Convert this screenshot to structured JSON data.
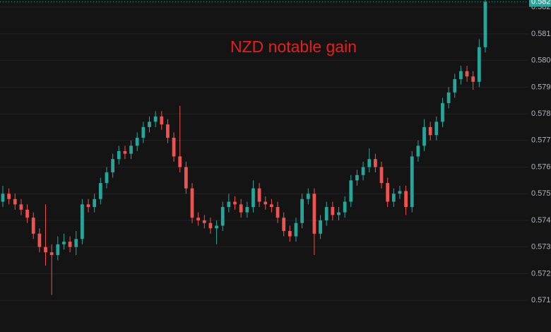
{
  "chart_data": {
    "type": "candlestick",
    "annotation": "NZD notable gain",
    "up_color": "#26a69a",
    "down_color": "#ef5350",
    "grid": true,
    "ylim": [
      0.56981,
      0.58227
    ],
    "yticks": [
      {
        "value": 0.571,
        "label": "0.57100"
      },
      {
        "value": 0.572,
        "label": "0.57200"
      },
      {
        "value": 0.573,
        "label": "0.57300"
      },
      {
        "value": 0.574,
        "label": "0.57400"
      },
      {
        "value": 0.575,
        "label": "0.57500"
      },
      {
        "value": 0.576,
        "label": "0.57600"
      },
      {
        "value": 0.577,
        "label": "0.57700"
      },
      {
        "value": 0.578,
        "label": "0.57800"
      },
      {
        "value": 0.579,
        "label": "0.57900"
      },
      {
        "value": 0.58,
        "label": "0.58000"
      },
      {
        "value": 0.581,
        "label": "0.58100"
      },
      {
        "value": 0.582,
        "label": "0.58200"
      }
    ],
    "last_price": {
      "value": 0.5822,
      "label": "0.58220"
    },
    "open": [
      0.5747,
      0.575,
      0.5748,
      0.5746,
      0.5744,
      0.5741,
      0.5735,
      0.573,
      0.5728,
      0.5727,
      0.5731,
      0.5732,
      0.573,
      0.5733,
      0.5746,
      0.5745,
      0.5748,
      0.5754,
      0.5758,
      0.5763,
      0.5766,
      0.5765,
      0.5768,
      0.5771,
      0.5775,
      0.5777,
      0.5779,
      0.5776,
      0.5771,
      0.5764,
      0.576,
      0.5752,
      0.5741,
      0.574,
      0.5739,
      0.5737,
      0.5738,
      0.5745,
      0.5747,
      0.5746,
      0.5743,
      0.5745,
      0.5752,
      0.5747,
      0.5746,
      0.5745,
      0.5741,
      0.5736,
      0.5734,
      0.5739,
      0.5748,
      0.575,
      0.5735,
      0.574,
      0.5745,
      0.5742,
      0.5743,
      0.5747,
      0.5755,
      0.5757,
      0.576,
      0.5763,
      0.576,
      0.5754,
      0.5747,
      0.575,
      0.5751,
      0.5745,
      0.5764,
      0.5768,
      0.5775,
      0.5772,
      0.5777,
      0.5784,
      0.5788,
      0.5793,
      0.5796,
      0.5794,
      0.5792,
      0.5805
    ],
    "high": [
      0.5753,
      0.5752,
      0.575,
      0.5748,
      0.5746,
      0.5743,
      0.5737,
      0.5746,
      0.5731,
      0.5734,
      0.5735,
      0.5734,
      0.5736,
      0.5748,
      0.5748,
      0.575,
      0.5756,
      0.576,
      0.5765,
      0.5768,
      0.5768,
      0.577,
      0.5773,
      0.5777,
      0.5779,
      0.5781,
      0.5781,
      0.5778,
      0.5773,
      0.5783,
      0.5762,
      0.5754,
      0.5743,
      0.5742,
      0.5741,
      0.574,
      0.5747,
      0.575,
      0.5749,
      0.5748,
      0.5747,
      0.5755,
      0.5754,
      0.5749,
      0.5748,
      0.5747,
      0.5743,
      0.5738,
      0.5741,
      0.575,
      0.5752,
      0.5752,
      0.5742,
      0.5747,
      0.5747,
      0.5745,
      0.5749,
      0.5757,
      0.5759,
      0.5762,
      0.5767,
      0.5765,
      0.5762,
      0.5756,
      0.5752,
      0.5753,
      0.5753,
      0.5766,
      0.577,
      0.5778,
      0.5777,
      0.5779,
      0.5786,
      0.579,
      0.5795,
      0.5798,
      0.5798,
      0.5796,
      0.5808,
      0.5823
    ],
    "low": [
      0.5745,
      0.5746,
      0.5744,
      0.5742,
      0.5739,
      0.5733,
      0.5728,
      0.5723,
      0.5712,
      0.5725,
      0.5729,
      0.5728,
      0.5727,
      0.5731,
      0.5743,
      0.5743,
      0.5746,
      0.5752,
      0.5756,
      0.5761,
      0.5763,
      0.5763,
      0.5766,
      0.5769,
      0.5773,
      0.5775,
      0.5774,
      0.5769,
      0.5762,
      0.5758,
      0.575,
      0.5739,
      0.5738,
      0.5737,
      0.5735,
      0.5731,
      0.5736,
      0.5743,
      0.5744,
      0.5741,
      0.5741,
      0.5743,
      0.5745,
      0.5744,
      0.5743,
      0.5739,
      0.5734,
      0.5732,
      0.5732,
      0.5737,
      0.5746,
      0.5727,
      0.5733,
      0.5738,
      0.574,
      0.574,
      0.5741,
      0.5745,
      0.5753,
      0.5755,
      0.5758,
      0.5758,
      0.5752,
      0.5745,
      0.5745,
      0.5748,
      0.5742,
      0.5743,
      0.5762,
      0.5766,
      0.577,
      0.577,
      0.5775,
      0.5782,
      0.5786,
      0.5791,
      0.5792,
      0.5789,
      0.579,
      0.5803
    ],
    "close": [
      0.575,
      0.5748,
      0.5746,
      0.5744,
      0.5741,
      0.5735,
      0.573,
      0.5728,
      0.5727,
      0.5731,
      0.5732,
      0.573,
      0.5733,
      0.5746,
      0.5745,
      0.5748,
      0.5754,
      0.5758,
      0.5763,
      0.5766,
      0.5765,
      0.5768,
      0.5771,
      0.5775,
      0.5777,
      0.5779,
      0.5776,
      0.5771,
      0.5764,
      0.576,
      0.5752,
      0.5741,
      0.574,
      0.5739,
      0.5737,
      0.5738,
      0.5745,
      0.5747,
      0.5746,
      0.5743,
      0.5745,
      0.5752,
      0.5747,
      0.5746,
      0.5745,
      0.5741,
      0.5736,
      0.5734,
      0.5739,
      0.5748,
      0.575,
      0.5735,
      0.574,
      0.5745,
      0.5742,
      0.5743,
      0.5747,
      0.5755,
      0.5757,
      0.576,
      0.5763,
      0.576,
      0.5754,
      0.5747,
      0.575,
      0.5751,
      0.5745,
      0.5764,
      0.5768,
      0.5775,
      0.5772,
      0.5777,
      0.5784,
      0.5788,
      0.5793,
      0.5796,
      0.5794,
      0.5792,
      0.5805,
      0.5822
    ]
  }
}
